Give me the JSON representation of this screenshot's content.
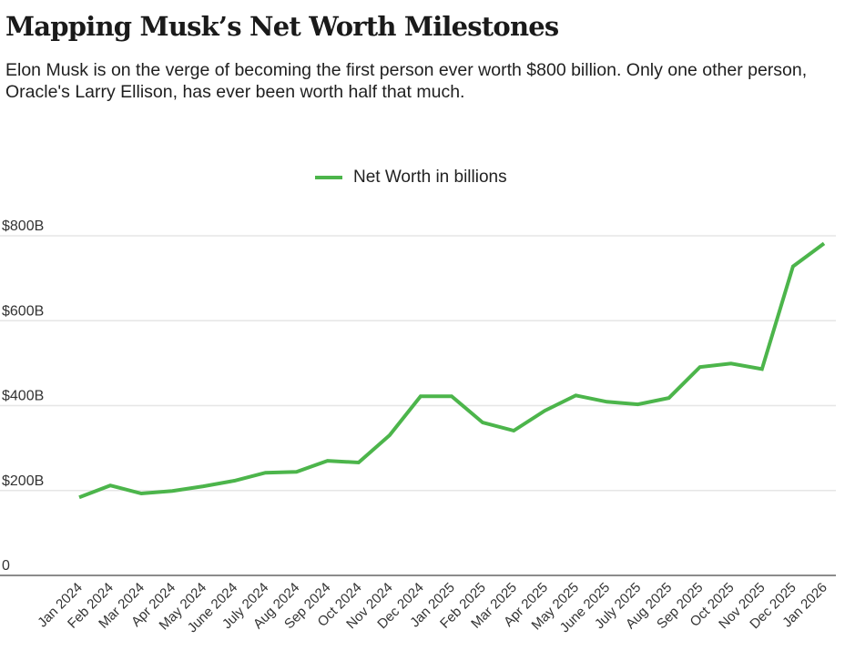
{
  "header": {
    "title": "Mapping Musk’s Net Worth Milestones",
    "subtitle": "Elon Musk is on the verge of becoming the first person ever worth $800 billion. Only one other person, Oracle's Larry Ellison, has ever been worth half that much."
  },
  "colors": {
    "line": "#4cb54b",
    "grid": "#e6e6e6",
    "axis": "#666666"
  },
  "chart_data": {
    "type": "line",
    "title": "Mapping Musk’s Net Worth Milestones",
    "subtitle": "Elon Musk is on the verge of becoming the first person ever worth $800 billion. Only one other person, Oracle's Larry Ellison, has ever been worth half that much.",
    "xlabel": "",
    "ylabel": "",
    "legend_position": "top-center",
    "grid": true,
    "ylim": [
      0,
      800
    ],
    "yticks": [
      0,
      200,
      400,
      600,
      800
    ],
    "ytick_labels": [
      "0",
      "$200B",
      "$400B",
      "$600B",
      "$800B"
    ],
    "categories": [
      "Jan 2024",
      "Feb 2024",
      "Mar 2024",
      "Apr 2024",
      "May 2024",
      "June 2024",
      "July 2024",
      "Aug 2024",
      "Sep 2024",
      "Oct 2024",
      "Nov 2024",
      "Dec 2024",
      "Jan 2025",
      "Feb 2025",
      "Mar 2025",
      "Apr 2025",
      "May 2025",
      "June 2025",
      "July 2025",
      "Aug 2025",
      "Sep 2025",
      "Oct 2025",
      "Nov 2025",
      "Dec 2025",
      "Jan 2026"
    ],
    "series": [
      {
        "name": "Net Worth in billions",
        "values": [
          184,
          212,
          193,
          199,
          210,
          223,
          242,
          244,
          270,
          266,
          330,
          422,
          422,
          360,
          341,
          388,
          424,
          409,
          403,
          418,
          491,
          499,
          486,
          728,
          782
        ]
      }
    ]
  }
}
